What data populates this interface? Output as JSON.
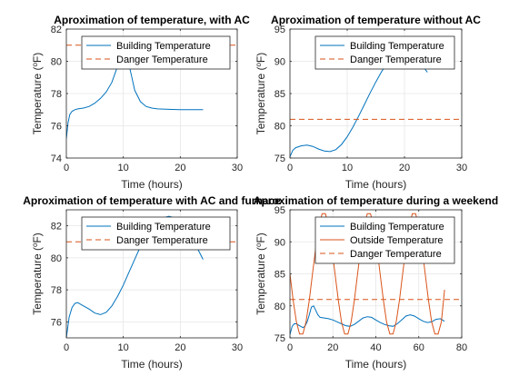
{
  "chart_data": [
    {
      "type": "line",
      "title": "Aproximation of temperature, with AC",
      "xlabel": "Time (hours)",
      "ylabel": "Temperature (°F)",
      "ylabel_main": "Temperature (",
      "ylabel_sup": "o",
      "ylabel_end": "F)",
      "xlim": [
        0,
        30
      ],
      "ylim": [
        74,
        82
      ],
      "xticks": [
        0,
        10,
        20,
        30
      ],
      "yticks": [
        74,
        76,
        78,
        80,
        82
      ],
      "grid": true,
      "legend": "top-right",
      "series": [
        {
          "name": "Building Temperature",
          "color": "#0072BD",
          "style": "solid",
          "x": [
            0,
            0.3,
            0.6,
            1,
            1.5,
            2,
            3,
            4,
            5,
            6,
            7,
            8,
            9,
            9.5,
            10,
            10.3,
            10.6,
            11,
            11.5,
            12,
            13,
            14,
            15,
            16,
            18,
            20,
            22,
            24
          ],
          "y": [
            75.2,
            76.2,
            76.7,
            76.9,
            77.0,
            77.05,
            77.1,
            77.2,
            77.4,
            77.7,
            78.1,
            78.7,
            79.7,
            80.4,
            80.8,
            80.7,
            80.4,
            79.8,
            79.0,
            78.2,
            77.5,
            77.2,
            77.1,
            77.05,
            77.02,
            77.0,
            77.0,
            77.0
          ]
        },
        {
          "name": "Danger Temperature",
          "color": "#D95319",
          "style": "dashed",
          "x": [
            0,
            30
          ],
          "y": [
            81,
            81
          ]
        }
      ]
    },
    {
      "type": "line",
      "title": "Aproximation of temperature without AC",
      "xlabel": "Time (hours)",
      "ylabel": "Temperature (°F)",
      "ylabel_main": "Temperature (",
      "ylabel_sup": "o",
      "ylabel_end": "F)",
      "xlim": [
        0,
        30
      ],
      "ylim": [
        75,
        95
      ],
      "xticks": [
        0,
        10,
        20,
        30
      ],
      "yticks": [
        75,
        80,
        85,
        90,
        95
      ],
      "grid": true,
      "legend": "top-right",
      "series": [
        {
          "name": "Building Temperature",
          "color": "#0072BD",
          "style": "solid",
          "x": [
            0,
            0.5,
            1,
            2,
            3,
            4,
            5,
            6,
            7,
            8,
            9,
            10,
            11,
            12,
            13,
            14,
            15,
            16,
            17,
            18,
            19,
            20,
            21,
            22,
            23,
            24
          ],
          "y": [
            75.2,
            76.2,
            76.6,
            76.9,
            77.0,
            76.8,
            76.4,
            76.1,
            76.0,
            76.3,
            77.1,
            78.3,
            79.8,
            81.5,
            83.3,
            85.1,
            86.8,
            88.4,
            89.7,
            90.7,
            91.3,
            91.5,
            91.3,
            90.6,
            89.5,
            88.3
          ]
        },
        {
          "name": "Danger Temperature",
          "color": "#D95319",
          "style": "dashed",
          "x": [
            0,
            30
          ],
          "y": [
            81,
            81
          ]
        }
      ]
    },
    {
      "type": "line",
      "title": "Aproximation of temperature with AC and furnace",
      "xlabel": "Time (hours)",
      "ylabel": "Temperature (°F)",
      "ylabel_main": "Temperature (",
      "ylabel_sup": "o",
      "ylabel_end": "F)",
      "xlim": [
        0,
        30
      ],
      "ylim": [
        75,
        83
      ],
      "xticks": [
        0,
        10,
        20,
        30
      ],
      "yticks": [
        76,
        78,
        80,
        82
      ],
      "grid": true,
      "legend": "top-right",
      "series": [
        {
          "name": "Building Temperature",
          "color": "#0072BD",
          "style": "solid",
          "x": [
            0,
            0.5,
            1,
            1.5,
            2,
            3,
            4,
            5,
            6,
            7,
            8,
            9,
            10,
            11,
            12,
            13,
            14,
            15,
            16,
            17,
            18,
            19,
            20,
            21,
            22,
            23,
            24
          ],
          "y": [
            75.0,
            76.3,
            76.9,
            77.15,
            77.2,
            77.0,
            76.8,
            76.55,
            76.45,
            76.6,
            77.0,
            77.6,
            78.3,
            79.1,
            79.9,
            80.7,
            81.3,
            81.8,
            82.2,
            82.5,
            82.6,
            82.5,
            82.2,
            81.8,
            81.2,
            80.6,
            79.9
          ]
        },
        {
          "name": "Danger Temperature",
          "color": "#D95319",
          "style": "dashed",
          "x": [
            0,
            30
          ],
          "y": [
            81,
            81
          ]
        }
      ]
    },
    {
      "type": "line",
      "title": "Aproximation of temperature during a weekend",
      "xlabel": "Time (hours)",
      "ylabel": "Temperature (°F)",
      "ylabel_main": "Temperature (",
      "ylabel_sup": "o",
      "ylabel_end": "F)",
      "xlim": [
        0,
        80
      ],
      "ylim": [
        75,
        95
      ],
      "xticks": [
        0,
        20,
        40,
        60,
        80
      ],
      "yticks": [
        75,
        80,
        85,
        90,
        95
      ],
      "grid": true,
      "legend": "top-right",
      "series": [
        {
          "name": "Building Temperature",
          "color": "#0072BD",
          "style": "solid",
          "x": [
            0,
            1,
            2,
            3,
            4,
            5,
            6,
            7,
            8,
            9,
            10,
            11,
            12,
            13,
            14,
            16,
            18,
            20,
            22,
            24,
            26,
            28,
            30,
            32,
            34,
            36,
            38,
            40,
            42,
            44,
            46,
            48,
            50,
            52,
            54,
            56,
            58,
            60,
            62,
            64,
            66,
            68,
            70,
            72
          ],
          "y": [
            75.5,
            76.8,
            77.2,
            77.2,
            77.0,
            76.8,
            76.6,
            76.8,
            77.5,
            78.6,
            79.8,
            80.0,
            79.3,
            78.6,
            78.2,
            78.1,
            78.0,
            77.8,
            77.5,
            77.2,
            76.9,
            76.8,
            77.1,
            77.6,
            78.1,
            78.3,
            78.2,
            77.8,
            77.4,
            77.1,
            76.9,
            76.8,
            77.2,
            77.8,
            78.4,
            78.6,
            78.4,
            78.0,
            77.6,
            77.4,
            77.5,
            77.9,
            78.0,
            77.6
          ]
        },
        {
          "name": "Outside Temperature",
          "color": "#D95319",
          "style": "solid",
          "x": [
            0,
            1.5,
            3,
            4.5,
            6,
            7.5,
            9,
            10.5,
            12,
            13.5,
            15,
            16.5,
            18,
            19.5,
            21,
            22.5,
            24,
            25.5,
            27,
            28.5,
            30,
            31.5,
            33,
            34.5,
            36,
            37.5,
            39,
            40.5,
            42,
            43.5,
            45,
            46.5,
            48,
            49.5,
            51,
            52.5,
            54,
            55.5,
            57,
            58.5,
            60,
            61.5,
            63,
            64.5,
            66,
            67.5,
            69,
            70.5,
            72
          ],
          "y": [
            85.0,
            80.9,
            77.5,
            75.6,
            75.6,
            77.5,
            80.9,
            85.0,
            89.1,
            92.5,
            94.4,
            94.4,
            92.5,
            89.1,
            85.0,
            80.9,
            77.5,
            75.6,
            75.6,
            77.5,
            80.9,
            85.0,
            89.1,
            92.5,
            94.4,
            94.4,
            92.5,
            89.1,
            85.0,
            80.9,
            77.5,
            75.6,
            75.6,
            77.5,
            80.9,
            85.0,
            89.1,
            92.5,
            94.4,
            94.4,
            92.5,
            89.1,
            85.0,
            80.9,
            77.5,
            75.6,
            75.6,
            77.5,
            82.5
          ]
        },
        {
          "name": "Danger Temperature",
          "color": "#D95319",
          "style": "dashed",
          "x": [
            0,
            80
          ],
          "y": [
            81,
            81
          ]
        }
      ]
    }
  ]
}
